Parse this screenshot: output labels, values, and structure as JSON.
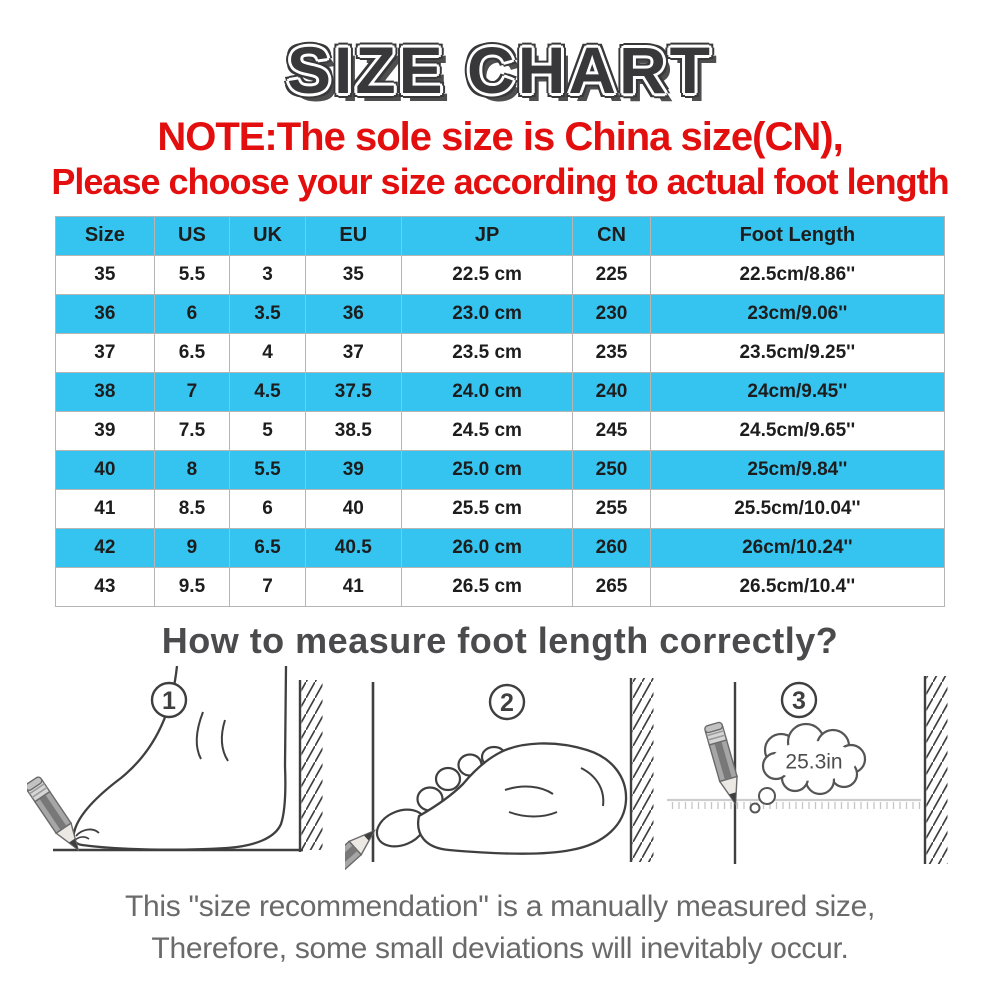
{
  "title": "SIZE CHART",
  "note": {
    "line1": "NOTE:The sole size is China size(CN),",
    "line2": "Please choose your size according to actual foot length"
  },
  "size_table": {
    "columns": [
      "Size",
      "US",
      "UK",
      "EU",
      "JP",
      "CN",
      "Foot Length"
    ],
    "rows": [
      [
        "35",
        "5.5",
        "3",
        "35",
        "22.5 cm",
        "225",
        "22.5cm/8.86''"
      ],
      [
        "36",
        "6",
        "3.5",
        "36",
        "23.0 cm",
        "230",
        "23cm/9.06''"
      ],
      [
        "37",
        "6.5",
        "4",
        "37",
        "23.5 cm",
        "235",
        "23.5cm/9.25''"
      ],
      [
        "38",
        "7",
        "4.5",
        "37.5",
        "24.0 cm",
        "240",
        "24cm/9.45''"
      ],
      [
        "39",
        "7.5",
        "5",
        "38.5",
        "24.5 cm",
        "245",
        "24.5cm/9.65''"
      ],
      [
        "40",
        "8",
        "5.5",
        "39",
        "25.0 cm",
        "250",
        "25cm/9.84''"
      ],
      [
        "41",
        "8.5",
        "6",
        "40",
        "25.5 cm",
        "255",
        "25.5cm/10.04''"
      ],
      [
        "42",
        "9",
        "6.5",
        "40.5",
        "26.0 cm",
        "260",
        "26cm/10.24''"
      ],
      [
        "43",
        "9.5",
        "7",
        "41",
        "26.5 cm",
        "265",
        "26.5cm/10.4''"
      ]
    ],
    "highlighted_rows": [
      "36",
      "38",
      "40",
      "42"
    ],
    "header_highlighted": true
  },
  "measure_section": {
    "heading": "How to measure foot length correctly?",
    "steps": [
      {
        "number": "1",
        "icon": "foot-side-view-pencil-wall-icon"
      },
      {
        "number": "2",
        "icon": "foot-sole-top-view-wall-icon"
      },
      {
        "number": "3",
        "icon": "pencil-ruler-mark-icon",
        "bubble_text": "25.3in"
      }
    ]
  },
  "footer": {
    "line1": "This \"size recommendation\" is a manually measured size,",
    "line2": "Therefore, some small deviations will inevitably occur."
  },
  "palette": {
    "red": "#e30e0e",
    "cyan": "#35c4f0",
    "title_dark": "#38383a",
    "heading_gray": "#4b4b4d",
    "footer_gray": "#6a6a6a",
    "table_border": "#b5b5b5",
    "table_text": "#1d1d1d",
    "line_art": "#3f3f3f"
  }
}
